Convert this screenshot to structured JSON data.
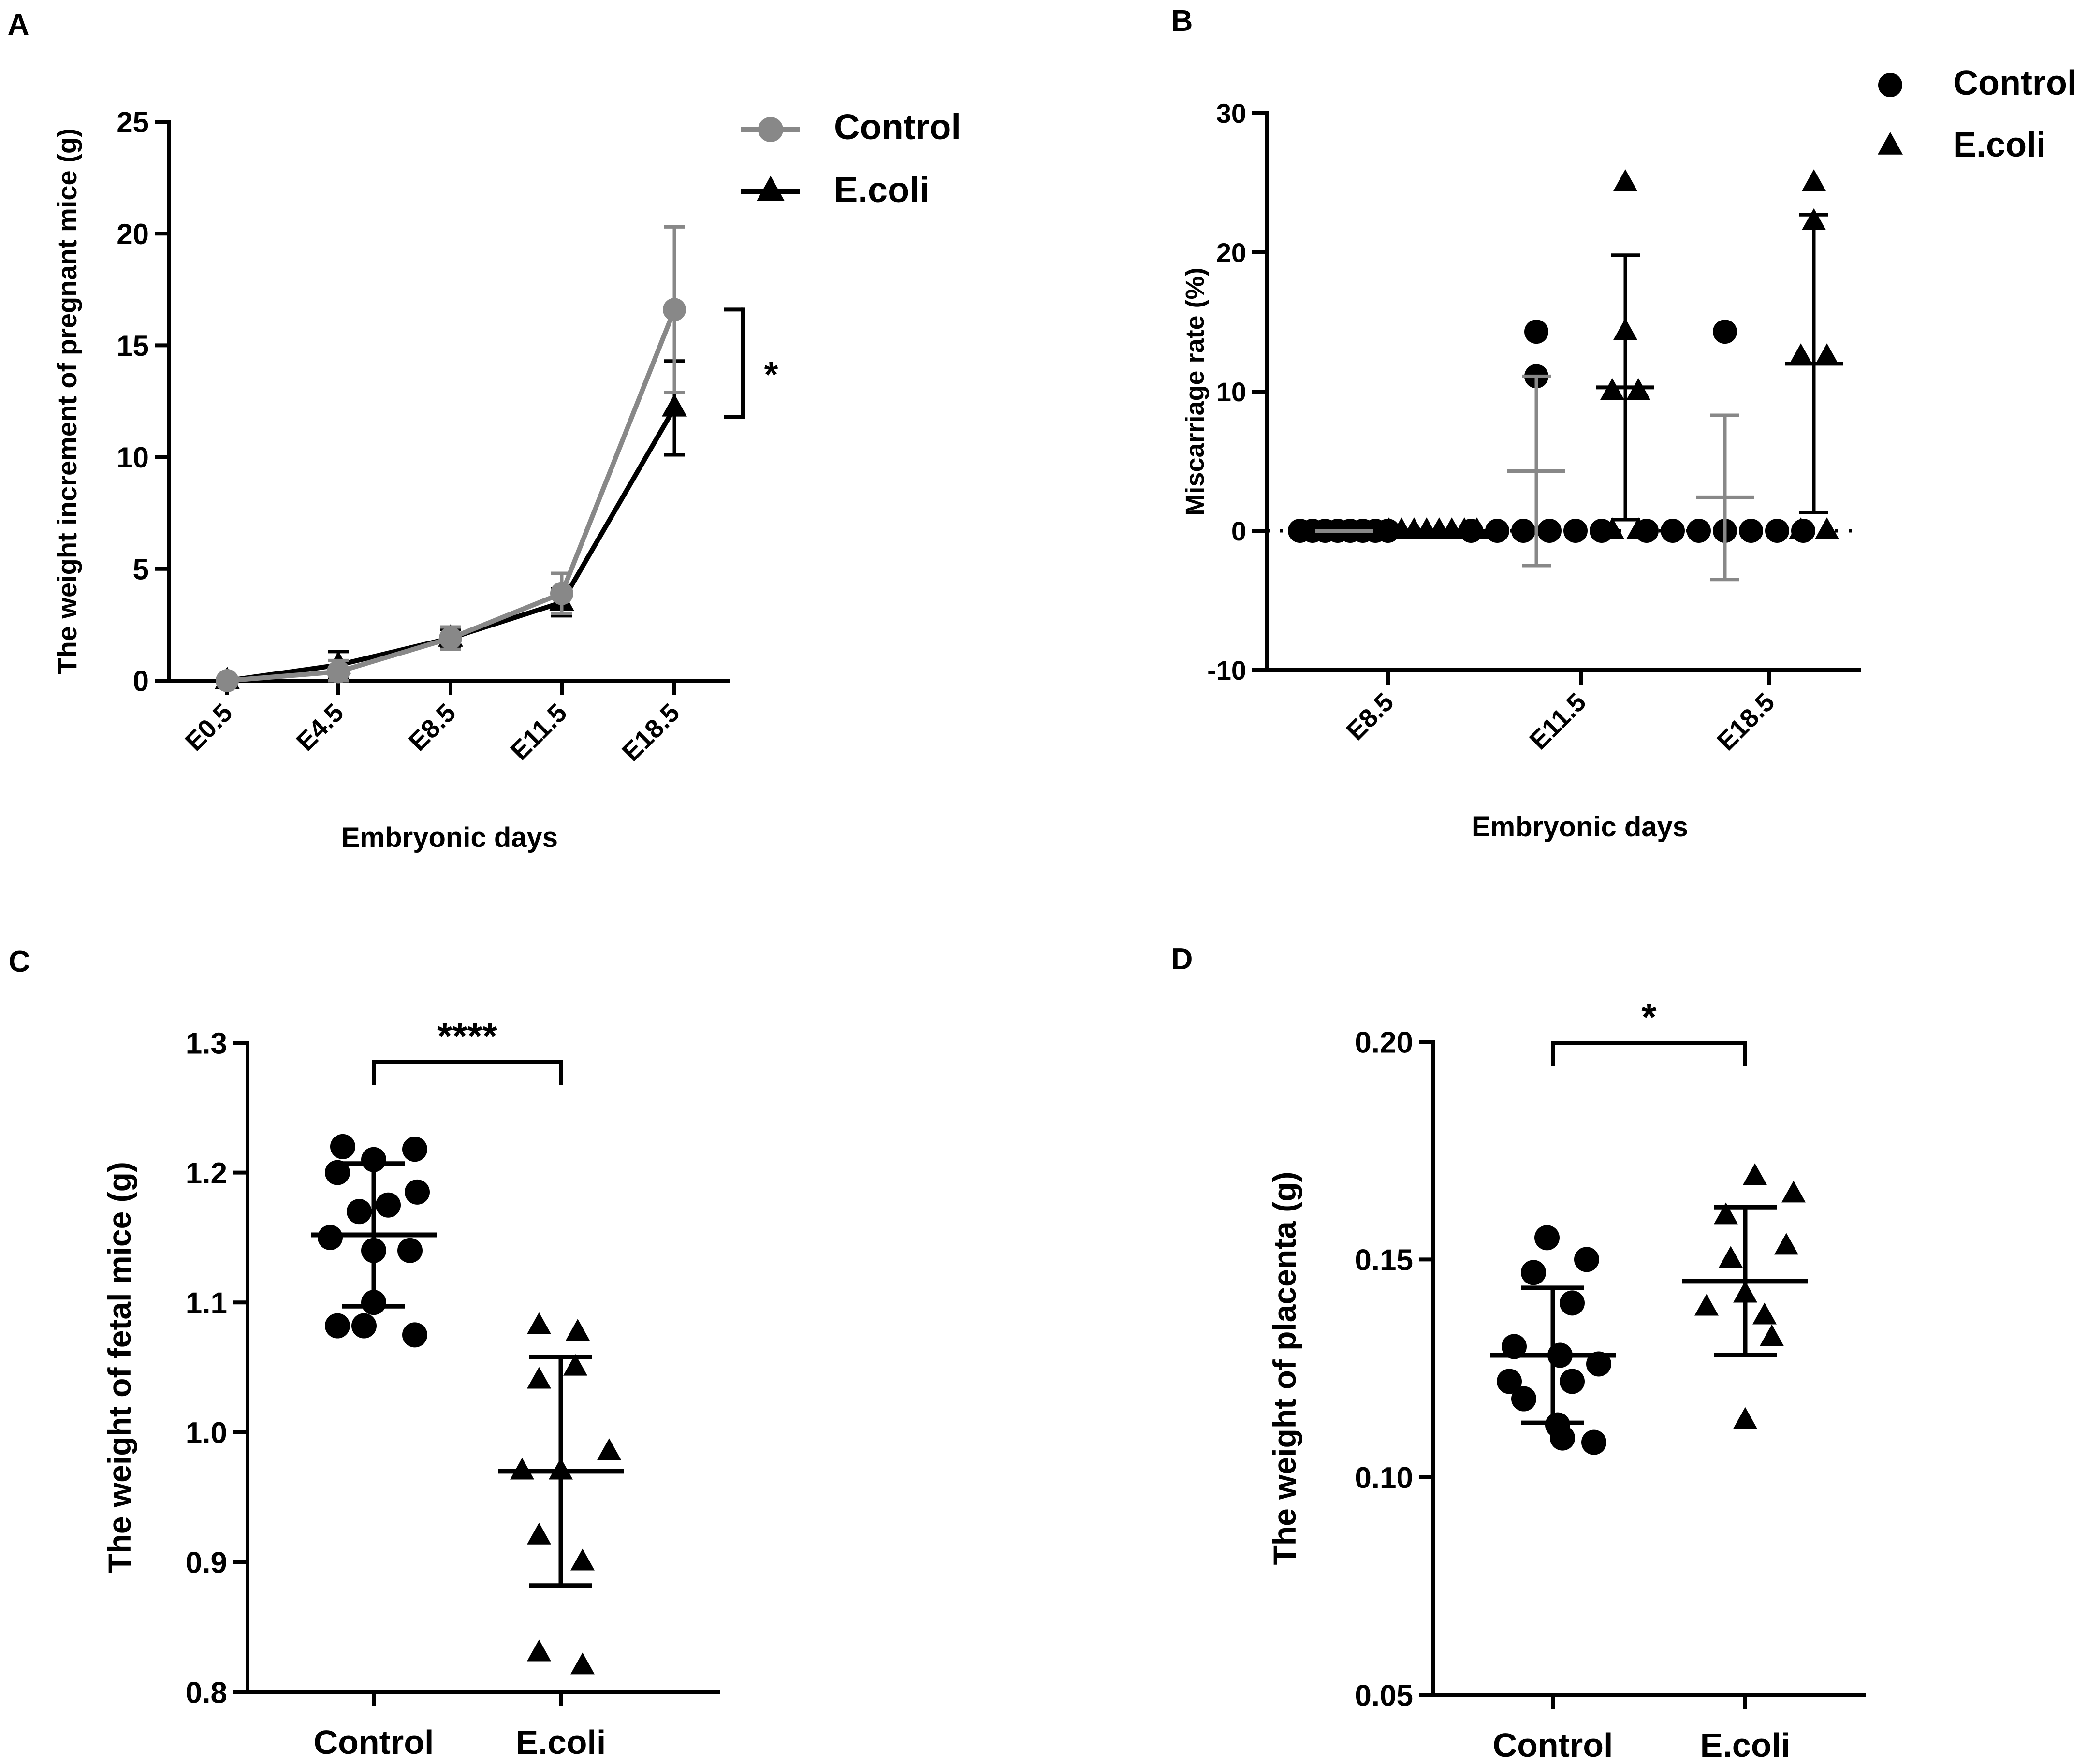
{
  "colors": {
    "control_line": "#888888",
    "control_points": "#000000",
    "ecoli": "#000000",
    "axis": "#000000"
  },
  "chart_data": [
    {
      "panel": "A",
      "type": "line",
      "categories": [
        "E0.5",
        "E4.5",
        "E8.5",
        "E11.5",
        "E18.5"
      ],
      "series": [
        {
          "name": "Control",
          "marker": "circle",
          "values": [
            0,
            0.4,
            1.9,
            3.9,
            16.6
          ],
          "sd": [
            0.1,
            0.5,
            0.5,
            0.9,
            3.7
          ]
        },
        {
          "name": "E.coli",
          "marker": "triangle",
          "values": [
            0,
            0.7,
            1.9,
            3.5,
            12.2
          ],
          "sd": [
            0.1,
            0.6,
            0.4,
            0.6,
            2.1
          ]
        }
      ],
      "significance": {
        "label": "*",
        "from": 11.8,
        "to": 16.6
      },
      "xlabel": "Embryonic days",
      "ylabel": "The weight increment of pregnant mice (g)",
      "ylim": [
        0,
        25
      ],
      "yticks": [
        "0",
        "5",
        "10",
        "15",
        "20",
        "25"
      ]
    },
    {
      "panel": "B",
      "type": "scatter",
      "categories": [
        "E8.5",
        "E11.5",
        "E18.5"
      ],
      "series": [
        {
          "name": "Control",
          "marker": "circle",
          "points": [
            [
              0,
              0,
              0,
              0,
              0,
              0,
              0,
              0
            ],
            [
              14.3,
              11.1,
              0,
              0,
              0,
              0,
              0,
              0
            ],
            [
              14.3,
              0,
              0,
              0,
              0,
              0,
              0,
              0
            ]
          ],
          "mean": [
            0,
            4.3,
            2.4
          ],
          "sd": [
            0,
            6.8,
            5.9
          ]
        },
        {
          "name": "E.coli",
          "marker": "triangle",
          "points": [
            [
              0,
              0,
              0,
              0,
              0,
              0,
              0,
              0
            ],
            [
              25,
              14.3,
              10,
              10,
              0,
              0
            ],
            [
              25,
              22.2,
              12.5,
              12.5,
              0,
              0
            ]
          ],
          "mean": [
            0,
            10.3,
            12.0
          ],
          "sd": [
            0,
            9.5,
            10.7
          ]
        }
      ],
      "xlabel": "Embryonic days",
      "ylabel": "Miscarriage rate (%)",
      "ylim": [
        -10,
        30
      ],
      "yticks": [
        "-10",
        "0",
        "10",
        "20",
        "30"
      ]
    },
    {
      "panel": "C",
      "type": "scatter",
      "categories": [
        "Control",
        "E.coli"
      ],
      "series": [
        {
          "name": "Control",
          "marker": "circle",
          "points": [
            1.22,
            1.21,
            1.218,
            1.2,
            1.185,
            1.17,
            1.175,
            1.15,
            1.14,
            1.14,
            1.1,
            1.082,
            1.082,
            1.075
          ],
          "mean": 1.152,
          "sd": 0.055
        },
        {
          "name": "E.coli",
          "marker": "triangle",
          "points": [
            1.082,
            1.077,
            1.05,
            1.04,
            0.985,
            0.97,
            0.97,
            0.92,
            0.9,
            0.83,
            0.82
          ],
          "mean": 0.97,
          "sd": 0.088
        }
      ],
      "significance": {
        "label": "****"
      },
      "ylabel": "The weight of fetal mice (g)",
      "ylim": [
        0.8,
        1.3
      ],
      "yticks": [
        "0.8",
        "0.9",
        "1.0",
        "1.1",
        "1.2",
        "1.3"
      ]
    },
    {
      "panel": "D",
      "type": "scatter",
      "categories": [
        "Control",
        "E.coli"
      ],
      "series": [
        {
          "name": "Control",
          "marker": "circle",
          "points": [
            0.155,
            0.15,
            0.147,
            0.14,
            0.13,
            0.128,
            0.126,
            0.122,
            0.122,
            0.118,
            0.112,
            0.108,
            0.109
          ],
          "mean": 0.128,
          "sd": 0.0155
        },
        {
          "name": "E.coli",
          "marker": "triangle",
          "points": [
            0.169,
            0.165,
            0.16,
            0.153,
            0.15,
            0.142,
            0.139,
            0.137,
            0.132,
            0.113
          ],
          "mean": 0.145,
          "sd": 0.017
        }
      ],
      "significance": {
        "label": "*"
      },
      "ylabel": "The weight of placenta (g)",
      "ylim": [
        0.05,
        0.2
      ],
      "yticks": [
        "0.05",
        "0.10",
        "0.15",
        "0.20"
      ]
    }
  ]
}
